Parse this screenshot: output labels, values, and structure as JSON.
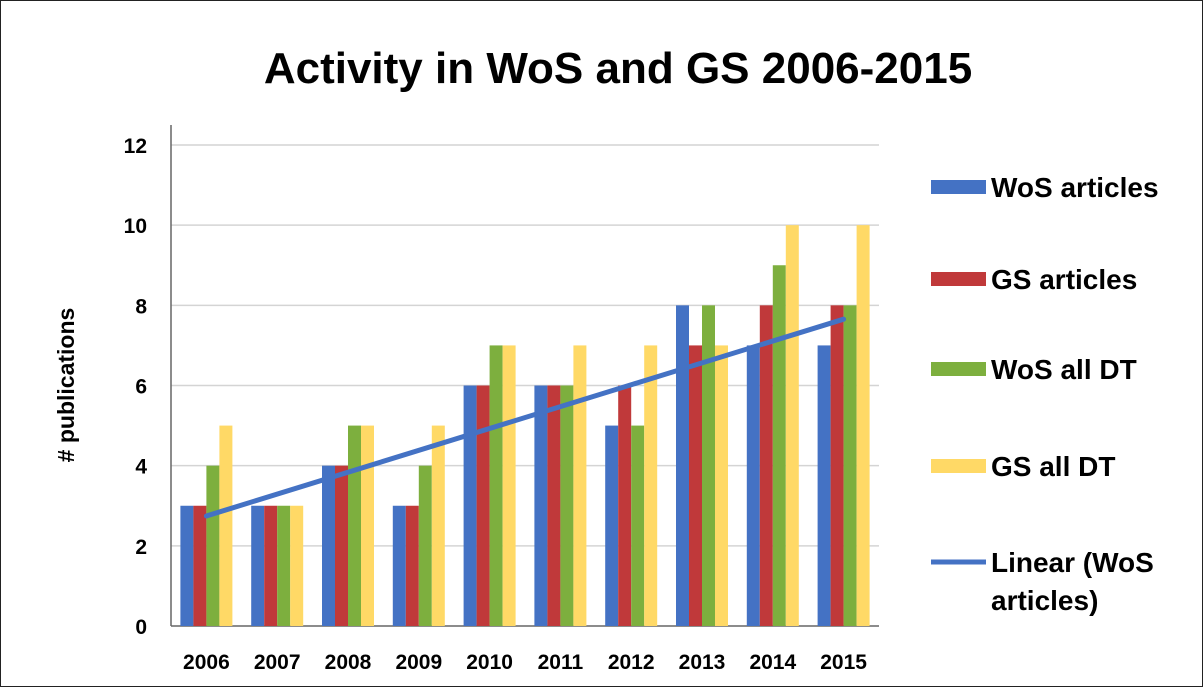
{
  "chart_data": {
    "type": "bar",
    "title": "Activity in WoS and GS 2006-2015",
    "xlabel": "",
    "ylabel": "# publications",
    "ylim": [
      0,
      12
    ],
    "yticks": [
      "0",
      "2",
      "4",
      "6",
      "8",
      "10",
      "12"
    ],
    "categories": [
      "2006",
      "2007",
      "2008",
      "2009",
      "2010",
      "2011",
      "2012",
      "2013",
      "2014",
      "2015"
    ],
    "series": [
      {
        "name": "WoS articles",
        "color": "#4472C4",
        "values": [
          3,
          3,
          4,
          3,
          6,
          6,
          5,
          8,
          7,
          7
        ]
      },
      {
        "name": "GS articles",
        "color": "#C0393A",
        "values": [
          3,
          3,
          4,
          3,
          6,
          6,
          6,
          7,
          8,
          8
        ]
      },
      {
        "name": "WoS all DT",
        "color": "#7DAF3E",
        "values": [
          4,
          3,
          5,
          4,
          7,
          6,
          5,
          8,
          9,
          8
        ]
      },
      {
        "name": "GS all DT",
        "color": "#FFD966",
        "values": [
          5,
          3,
          5,
          5,
          7,
          7,
          7,
          7,
          10,
          10
        ]
      }
    ],
    "trendline": {
      "name": "Linear (WoS articles)",
      "legend_lines": [
        "Linear (WoS",
        "articles)"
      ],
      "color": "#4472C4",
      "of_series": "WoS articles",
      "type": "linear"
    },
    "grid": true,
    "legend_position": "right"
  }
}
